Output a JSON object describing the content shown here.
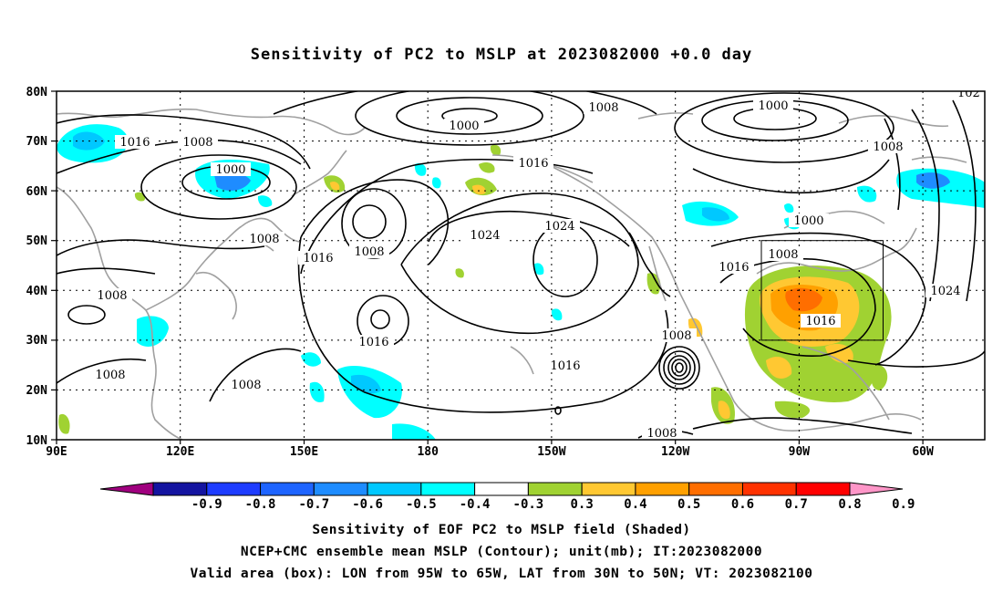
{
  "title": "Sensitivity of PC2 to MSLP at 2023082000 +0.0 day",
  "lat_labels": [
    "80N",
    "70N",
    "60N",
    "50N",
    "40N",
    "30N",
    "20N",
    "10N"
  ],
  "lon_labels": [
    "90E",
    "120E",
    "150E",
    "180",
    "150W",
    "120W",
    "90W",
    "60W"
  ],
  "contour_labels": [
    "1000",
    "1008",
    "1016",
    "1024"
  ],
  "colorbar": {
    "tick_labels": [
      "-0.9",
      "-0.8",
      "-0.7",
      "-0.6",
      "-0.5",
      "-0.4",
      "-0.3",
      "0.3",
      "0.4",
      "0.5",
      "0.6",
      "0.7",
      "0.8",
      "0.9"
    ],
    "colors": [
      "#a0007f",
      "#1414a0",
      "#1e3cff",
      "#1e64ff",
      "#1e8cff",
      "#00c8ff",
      "#00ffff",
      "#ffffff",
      "#a0d232",
      "#ffc832",
      "#ffa000",
      "#ff6e00",
      "#ff3200",
      "#ff0000",
      "#ff96c8"
    ]
  },
  "captions": {
    "line1": "Sensitivity of EOF PC2 to MSLP field (Shaded)",
    "line2": "NCEP+CMC ensemble mean MSLP (Contour); unit(mb); IT:2023082000",
    "line3": "Valid area (box): LON from 95W to 65W, LAT from 30N to 50N; VT: 2023082100"
  },
  "valid_box": {
    "lon": [
      "95W",
      "65W"
    ],
    "lat": [
      "30N",
      "50N"
    ]
  }
}
